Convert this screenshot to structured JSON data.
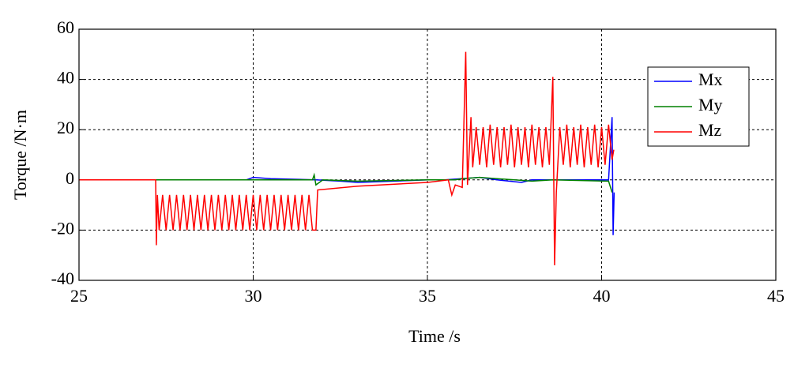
{
  "chart_data": {
    "type": "line",
    "xlabel": "Time /s",
    "ylabel": "Torque /N·m",
    "xlim": [
      25,
      45
    ],
    "xticks": [
      25,
      30,
      35,
      40,
      45
    ],
    "ylim": [
      -40,
      60
    ],
    "yticks": [
      -40,
      -20,
      0,
      20,
      40,
      60
    ],
    "grid": true,
    "legend": "upper right",
    "series": [
      {
        "name": "Mx",
        "color": "#0000ff",
        "x": [
          25,
          29.8,
          30,
          30.5,
          31.8,
          32.5,
          33,
          35,
          35.5,
          36.5,
          37,
          37.7,
          38,
          38.6,
          38.7,
          40.2,
          40.3,
          40.33,
          40.36
        ],
        "values": [
          0,
          0,
          1,
          0.5,
          0,
          -0.5,
          -1,
          0,
          0,
          1,
          0,
          -1,
          0,
          0,
          0,
          0,
          25,
          -22,
          -5
        ]
      },
      {
        "name": "My",
        "color": "#008000",
        "x": [
          25,
          29.8,
          31.7,
          31.75,
          31.8,
          32,
          33,
          35,
          35.8,
          36,
          36.5,
          37.5,
          38,
          38.6,
          40.2,
          40.3
        ],
        "values": [
          0,
          0,
          0,
          2,
          -2,
          0,
          -0.5,
          0,
          0,
          0.5,
          1,
          0,
          -0.5,
          0,
          -0.5,
          -5
        ]
      },
      {
        "name": "Mz",
        "color": "#ff0000",
        "x": [
          25,
          27.2,
          27.22,
          27.25,
          27.3,
          27.4,
          27.5,
          27.6,
          27.7,
          27.8,
          27.9,
          28.0,
          28.1,
          28.2,
          28.3,
          28.4,
          28.5,
          28.6,
          28.7,
          28.8,
          28.9,
          29.0,
          29.1,
          29.2,
          29.3,
          29.4,
          29.5,
          29.6,
          29.7,
          29.8,
          29.9,
          30.0,
          30.1,
          30.2,
          30.3,
          30.4,
          30.5,
          30.6,
          30.7,
          30.8,
          30.9,
          31.0,
          31.1,
          31.2,
          31.3,
          31.4,
          31.5,
          31.6,
          31.7,
          31.8,
          31.85,
          33,
          35,
          35.6,
          35.7,
          35.8,
          36.0,
          36.1,
          36.15,
          36.25,
          36.3,
          36.4,
          36.5,
          36.6,
          36.7,
          36.8,
          36.9,
          37.0,
          37.1,
          37.2,
          37.3,
          37.4,
          37.5,
          37.6,
          37.7,
          37.8,
          37.9,
          38.0,
          38.1,
          38.2,
          38.3,
          38.4,
          38.5,
          38.6,
          38.65,
          38.7,
          38.8,
          38.9,
          39.0,
          39.1,
          39.2,
          39.3,
          39.4,
          39.5,
          39.6,
          39.7,
          39.8,
          39.9,
          40.0,
          40.1,
          40.2,
          40.3,
          40.35
        ],
        "values": [
          0,
          0,
          -26,
          -6,
          -20,
          -6,
          -20,
          -6,
          -20,
          -6,
          -20,
          -6,
          -20,
          -6,
          -20,
          -6,
          -20,
          -6,
          -20,
          -6,
          -20,
          -6,
          -20,
          -6,
          -20,
          -6,
          -20,
          -6,
          -20,
          -6,
          -20,
          -6,
          -20,
          -6,
          -20,
          -6,
          -20,
          -6,
          -20,
          -6,
          -20,
          -6,
          -20,
          -6,
          -20,
          -6,
          -20,
          -6,
          -20,
          -20,
          -4,
          -2.5,
          -1,
          0,
          -6,
          -2,
          -3,
          51,
          -2,
          25,
          5,
          21,
          6,
          21,
          5,
          22,
          6,
          21,
          5,
          21,
          6,
          22,
          5,
          21,
          6,
          21,
          5,
          22,
          6,
          21,
          5,
          21,
          6,
          41,
          -34,
          -5,
          21,
          6,
          22,
          5,
          21,
          6,
          22,
          5,
          21,
          6,
          22,
          5,
          21,
          6,
          22,
          8,
          12
        ]
      }
    ]
  }
}
